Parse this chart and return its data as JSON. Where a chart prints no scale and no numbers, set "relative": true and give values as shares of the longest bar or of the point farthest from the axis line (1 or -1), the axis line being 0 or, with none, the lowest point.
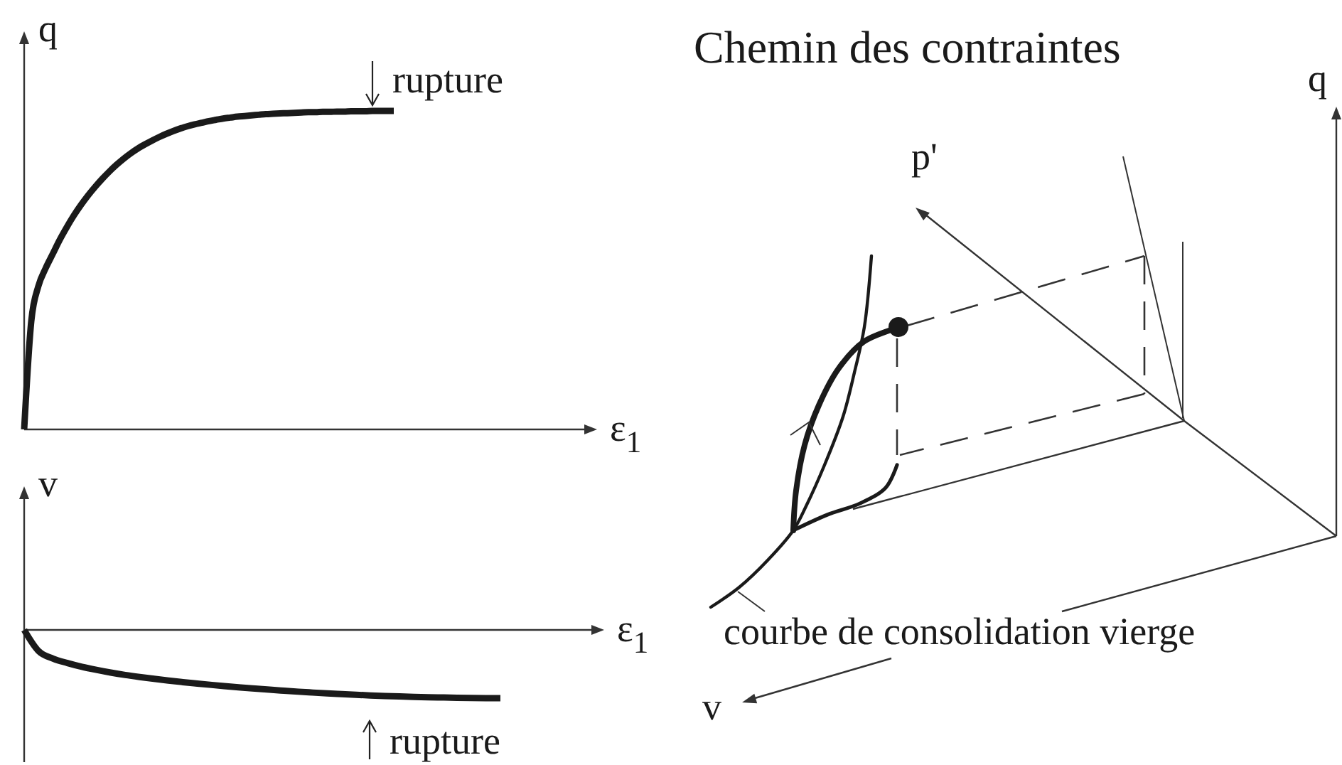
{
  "chart_data": [
    {
      "type": "line",
      "xlabel": "ε$_{1}$",
      "ylabel": "q",
      "relative": true,
      "categories": [
        null,
        null,
        null,
        null,
        null,
        null,
        null,
        null,
        null,
        null,
        null,
        null,
        null,
        null,
        null,
        null,
        null,
        null,
        null,
        null,
        null,
        null,
        null,
        null,
        null,
        null,
        null,
        null,
        null,
        null,
        null,
        null,
        null,
        null,
        null,
        null,
        null,
        null,
        null,
        null,
        null,
        null,
        null,
        null,
        null,
        null,
        null,
        null,
        null,
        null,
        null,
        null,
        null
      ],
      "series": [
        {
          "color": "#1a1a1a",
          "values": [
            0,
            0.34,
            0.45,
            0.505,
            0.55,
            0.595,
            0.635,
            0.672,
            0.705,
            0.735,
            0.762,
            0.787,
            0.81,
            0.831,
            0.85,
            0.867,
            0.882,
            0.895,
            0.907,
            0.918,
            0.928,
            0.937,
            0.945,
            0.952,
            0.958,
            0.963,
            0.968,
            0.972,
            0.976,
            0.979,
            0.982,
            0.984,
            0.986,
            0.988,
            0.99,
            0.991,
            0.992,
            0.993,
            0.994,
            0.995,
            0.996,
            0.996,
            0.997,
            0.997,
            0.998,
            0.998,
            0.999,
            0.999,
            0.999,
            1,
            1,
            1,
            1
          ]
        }
      ],
      "annotations": [
        "rupture"
      ]
    },
    {
      "type": "line",
      "xlabel": "ε$_{1}$",
      "ylabel": "v",
      "relative": true,
      "categories": [
        null,
        null,
        null,
        null,
        null,
        null,
        null,
        null,
        null,
        null,
        null,
        null,
        null,
        null,
        null,
        null,
        null,
        null,
        null,
        null,
        null,
        null,
        null,
        null,
        null,
        null,
        null,
        null,
        null,
        null,
        null,
        null,
        null,
        null
      ],
      "series": [
        {
          "color": "#1a1a1a",
          "values": [
            0,
            -0.31,
            -0.42,
            -0.485,
            -0.54,
            -0.585,
            -0.625,
            -0.66,
            -0.69,
            -0.717,
            -0.742,
            -0.765,
            -0.786,
            -0.806,
            -0.825,
            -0.843,
            -0.86,
            -0.876,
            -0.891,
            -0.905,
            -0.918,
            -0.93,
            -0.941,
            -0.951,
            -0.96,
            -0.968,
            -0.975,
            -0.981,
            -0.986,
            -0.99,
            -0.994,
            -0.997,
            -0.999,
            -1
          ]
        }
      ],
      "annotations": [
        "rupture"
      ]
    },
    {
      "type": "other",
      "title": "Chemin des contraintes",
      "annotations": [
        "q",
        "p'",
        "v",
        "courbe de consolidation vierge"
      ]
    }
  ]
}
